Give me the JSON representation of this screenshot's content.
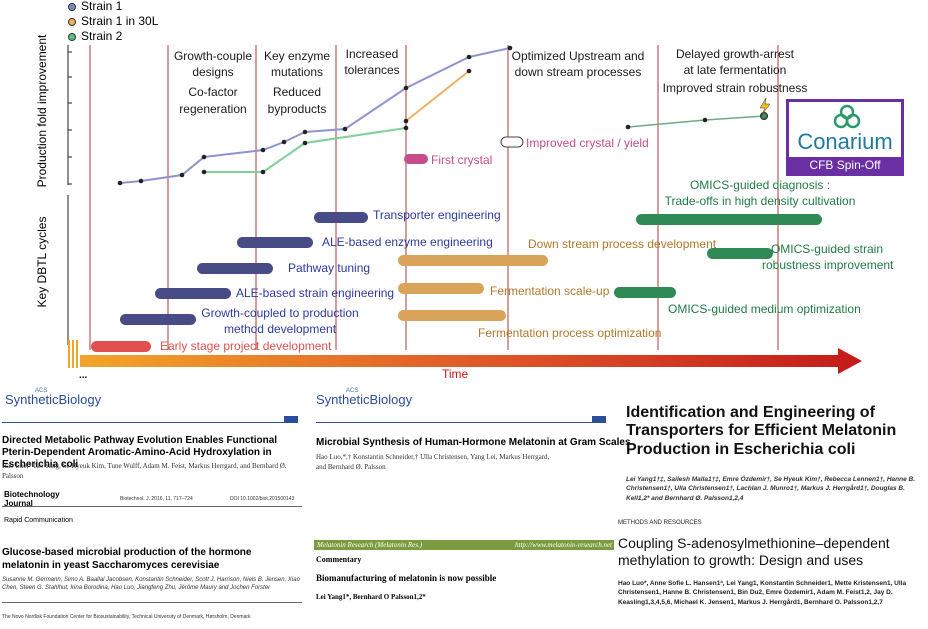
{
  "legend": [
    {
      "label": "Strain 1",
      "color": "#7f84c6"
    },
    {
      "label": "Strain 1 in 30L",
      "color": "#f0b060"
    },
    {
      "label": "Strain 2",
      "color": "#5fbf7f"
    }
  ],
  "axes": {
    "y_top": "Production fold improvement",
    "y_bottom": "Key DBTL cycles",
    "x": "Time"
  },
  "milestones": [
    {
      "id": "m1",
      "lines": [
        "Growth-couple",
        "designs",
        "Co-factor",
        "regeneration"
      ]
    },
    {
      "id": "m2",
      "lines": [
        "Key enzyme",
        "mutations",
        "Reduced",
        "byproducts"
      ]
    },
    {
      "id": "m3",
      "lines": [
        "Increased",
        "tolerances"
      ]
    },
    {
      "id": "m4",
      "lines": [
        "Optimized Upstream and",
        "down stream processes"
      ]
    },
    {
      "id": "m5",
      "lines": [
        "Delayed growth-arrest",
        "at late fermentation",
        "Improved strain robustness"
      ]
    }
  ],
  "events": {
    "first_crystal": "First crystal",
    "improved_crystal": "Improved crystal / yield"
  },
  "logo": {
    "name": "Conarium",
    "tagline": "CFB Spin-Off"
  },
  "tasks": {
    "t1": "Transporter engineering",
    "t2": "ALE-based enzyme engineering",
    "t3": "Pathway tuning",
    "t4": "ALE-based strain engineering",
    "t5a": "Growth-coupled to production",
    "t5b": "method development",
    "t6": "Early stage project development",
    "t7": "Down stream process development",
    "t8": "Fermentation scale-up",
    "t9": "Fermentation process optimization",
    "t10a": "OMICS-guided diagnosis :",
    "t10b": "Trade-offs in high density cultivation",
    "t11a": "OMICS-guided strain",
    "t11b": "robustness improvement",
    "t12": "OMICS-guided medium optimization",
    "ellipsis": "..."
  },
  "colors": {
    "strain1": "#7f84c6",
    "strain30l": "#f0b060",
    "strain2": "#6cc48a",
    "navy": "#474c86",
    "blue_text": "#2d3aa0",
    "orange_bar": "#d9a45a",
    "orange_text": "#b0782c",
    "green_bar": "#2f8a55",
    "green_text": "#237a46",
    "red": "#e05050",
    "crystal": "#c44d8a",
    "conarium": "#6a2fa3"
  },
  "papers": {
    "p1": {
      "journal_a": "ACS",
      "journal_b": "SyntheticBiology",
      "title": "Directed Metabolic Pathway Evolution Enables Functional Pterin-Dependent Aromatic-Amino-Acid Hydroxylation in Escherichia coli",
      "authors": "Hao Luo,* Lei Yang, Se Hyeuk Kim, Tune Wulff, Adam M. Feist, Markus Herrgard, and Bernhard Ø. Palsson"
    },
    "p2": {
      "journal": "Biotechnology Journal",
      "header": "Biotechnol. J. 2016, 11, 717–724",
      "doi": "DOI 10.1002/biot.201500143",
      "type": "Rapid Communication",
      "title": "Glucose-based microbial production of the hormone melatonin in yeast Saccharomyces cerevisiae",
      "authors": "Susanne M. Germann, Simo A. Baallal Jacobsen, Konstantin Schneider, Scott J. Harrison, Niels B. Jensen, Xiao Chen, Steen G. Stahlhut, Irina Borodina, Hao Luo, Jiangfeng Zhu, Jérôme Maury and Jochen Forster",
      "affiliation": "The Novo Nordisk Foundation Center for Biosustainability, Technical University of Denmark, Hørsholm, Denmark"
    },
    "p3": {
      "journal_a": "ACS",
      "journal_b": "SyntheticBiology",
      "title": "Microbial Synthesis of Human-Hormone Melatonin at Gram Scales",
      "authors": "Hao Luo,*,† Konstantin Schneider,† Ulla Christensen, Yang Lei, Markus Herrgard, and Bernhard Ø. Palsson"
    },
    "p4": {
      "journal": "Melatonin Research (Melatonin Res.)",
      "url": "http://www.melatonin-research.net",
      "type": "Commentary",
      "title": "Biomanufacturing of melatonin is now possible",
      "authors": "Lei Yang1*, Bernhard O Palsson1,2*"
    },
    "p5": {
      "title": "Identification and Engineering of Transporters for Efficient Melatonin Production in Escherichia coli",
      "authors": "Lei Yang1†‡, Sailesh Malla1†‡, Emre Özdemir†, Se Hyeuk Kim†, Rebecca Lennen1†, Hanne B. Christensen1†, Ulla Christensen1†, Lachlan J. Munro1†, Markus J. Herrgård1†, Douglas B. Kell1,2* and Bernhard Ø. Palsson1,2,4"
    },
    "p6": {
      "section": "METHODS AND RESOURCES",
      "title": "Coupling S-adenosylmethionine–dependent methylation to growth: Design and uses",
      "authors": "Hao Luo*, Anne Sofie L. Hansen1ª, Lei Yang1, Konstantin Schneider1, Mette Kristensen1, Ulla Christensen1, Hanne B. Christensen1, Bin Du2, Emre Özdemir1, Adam M. Feist1,2, Jay D. Keasling1,3,4,5,6, Michael K. Jensen1, Markus J. Herrgård1, Bernhard O. Palsson1,2,7"
    }
  }
}
